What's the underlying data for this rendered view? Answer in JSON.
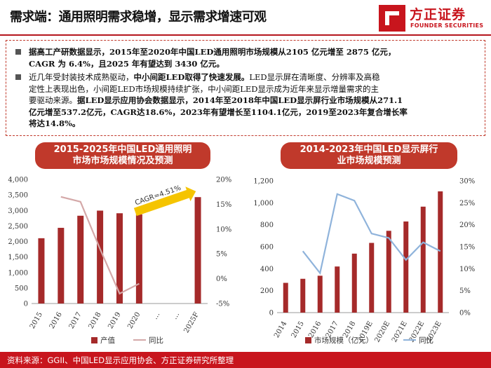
{
  "header": {
    "title": "需求端：通用照明需求稳增，显示需求增速可观",
    "logo_cn": "方正证券",
    "logo_en": "FOUNDER SECURITIES",
    "accent_color": "#c8151d"
  },
  "summary": {
    "b1_l1": "据高工产研数据显示，2015年至2020年中国LED通用照明市场规模从2105 亿元增至 2875 亿元，",
    "b1_l2": "CAGR 为 6.4%，且2025 年有望达到 3430 亿元。",
    "b2_l1a": "近几年受封装技术成熟驱动，",
    "b2_l1b": "中小间距LED取得了快速发展。",
    "b2_l1c": "LED显示屏在清晰度、分辨率及高稳",
    "b2_l2": "定性上表现出色，小间距LED市场规模持续扩张，中小间距LED显示成为近年来显示增量需求的主",
    "b2_l3a": "要驱动来源。",
    "b2_l3b": "据LED显示应用协会数据显示，2014年至2018年中国LED显示屏行业市场规模从271.1",
    "b2_l4": "亿元增至537.2亿元，CAGR达18.6%，2023年有望增长至1104.1亿元，2019至2023年复合增长率",
    "b2_l5": "将达14.8%。"
  },
  "left_panel": {
    "title_l1": "2015-2025年中国LED通用照明",
    "title_l2": "市场市场规模情况及预测"
  },
  "right_panel": {
    "title_l1": "2014-2023年中国LED显示屏行",
    "title_l2": "业市场规模预测"
  },
  "chart_data": [
    {
      "type": "bar",
      "categories": [
        "2015",
        "2016",
        "2017",
        "2018",
        "2019",
        "2020",
        "…",
        "…",
        "2025F"
      ],
      "series": [
        {
          "name": "产值",
          "kind": "bar",
          "axis": "left",
          "color": "#a52a2a",
          "values": [
            2105,
            2440,
            2830,
            2995,
            2910,
            2875,
            null,
            null,
            3430
          ]
        },
        {
          "name": "同比",
          "kind": "line",
          "axis": "right",
          "color": "#d4a8a8",
          "values": [
            null,
            16.5,
            15.5,
            6.0,
            -3.0,
            -1.0,
            null,
            null,
            null
          ]
        }
      ],
      "yleft": {
        "min": 0,
        "max": 4000,
        "ticks": [
          "0",
          "500",
          "1,000",
          "1,500",
          "2,000",
          "2,500",
          "3,000",
          "3,500",
          "4,000"
        ]
      },
      "yright": {
        "min": -5,
        "max": 20,
        "ticks": [
          "-5%",
          "0%",
          "5%",
          "10%",
          "15%",
          "20%"
        ]
      },
      "annotation": "CAGR=4.51%",
      "legend": [
        "产值",
        "同比"
      ],
      "legend_position": "bottom"
    },
    {
      "type": "bar",
      "categories": [
        "2014",
        "2015",
        "2016",
        "2017",
        "2018",
        "2019E",
        "2020E",
        "2021E",
        "2022E",
        "2023E"
      ],
      "series": [
        {
          "name": "市场规模（亿元）",
          "kind": "bar",
          "axis": "left",
          "color": "#a52a2a",
          "values": [
            271.1,
            308,
            336,
            420,
            537.2,
            635,
            745,
            830,
            965,
            1104.1
          ]
        },
        {
          "name": "同比",
          "kind": "line",
          "axis": "right",
          "color": "#8fb3db",
          "values": [
            null,
            14.0,
            9.0,
            27.0,
            25.5,
            18.0,
            17.0,
            12.0,
            16.0,
            14.0
          ]
        }
      ],
      "yleft": {
        "min": 0,
        "max": 1200,
        "ticks": [
          "0",
          "200",
          "400",
          "600",
          "800",
          "1,000",
          "1,200"
        ]
      },
      "yright": {
        "min": 0,
        "max": 30,
        "ticks": [
          "0%",
          "5%",
          "10%",
          "15%",
          "20%",
          "25%",
          "30%"
        ]
      },
      "legend": [
        "市场规模（亿元）",
        "同比"
      ],
      "legend_position": "bottom"
    }
  ],
  "footer": {
    "source": "资料来源：GGII、中国LED显示应用协会、方正证券研究所整理"
  }
}
